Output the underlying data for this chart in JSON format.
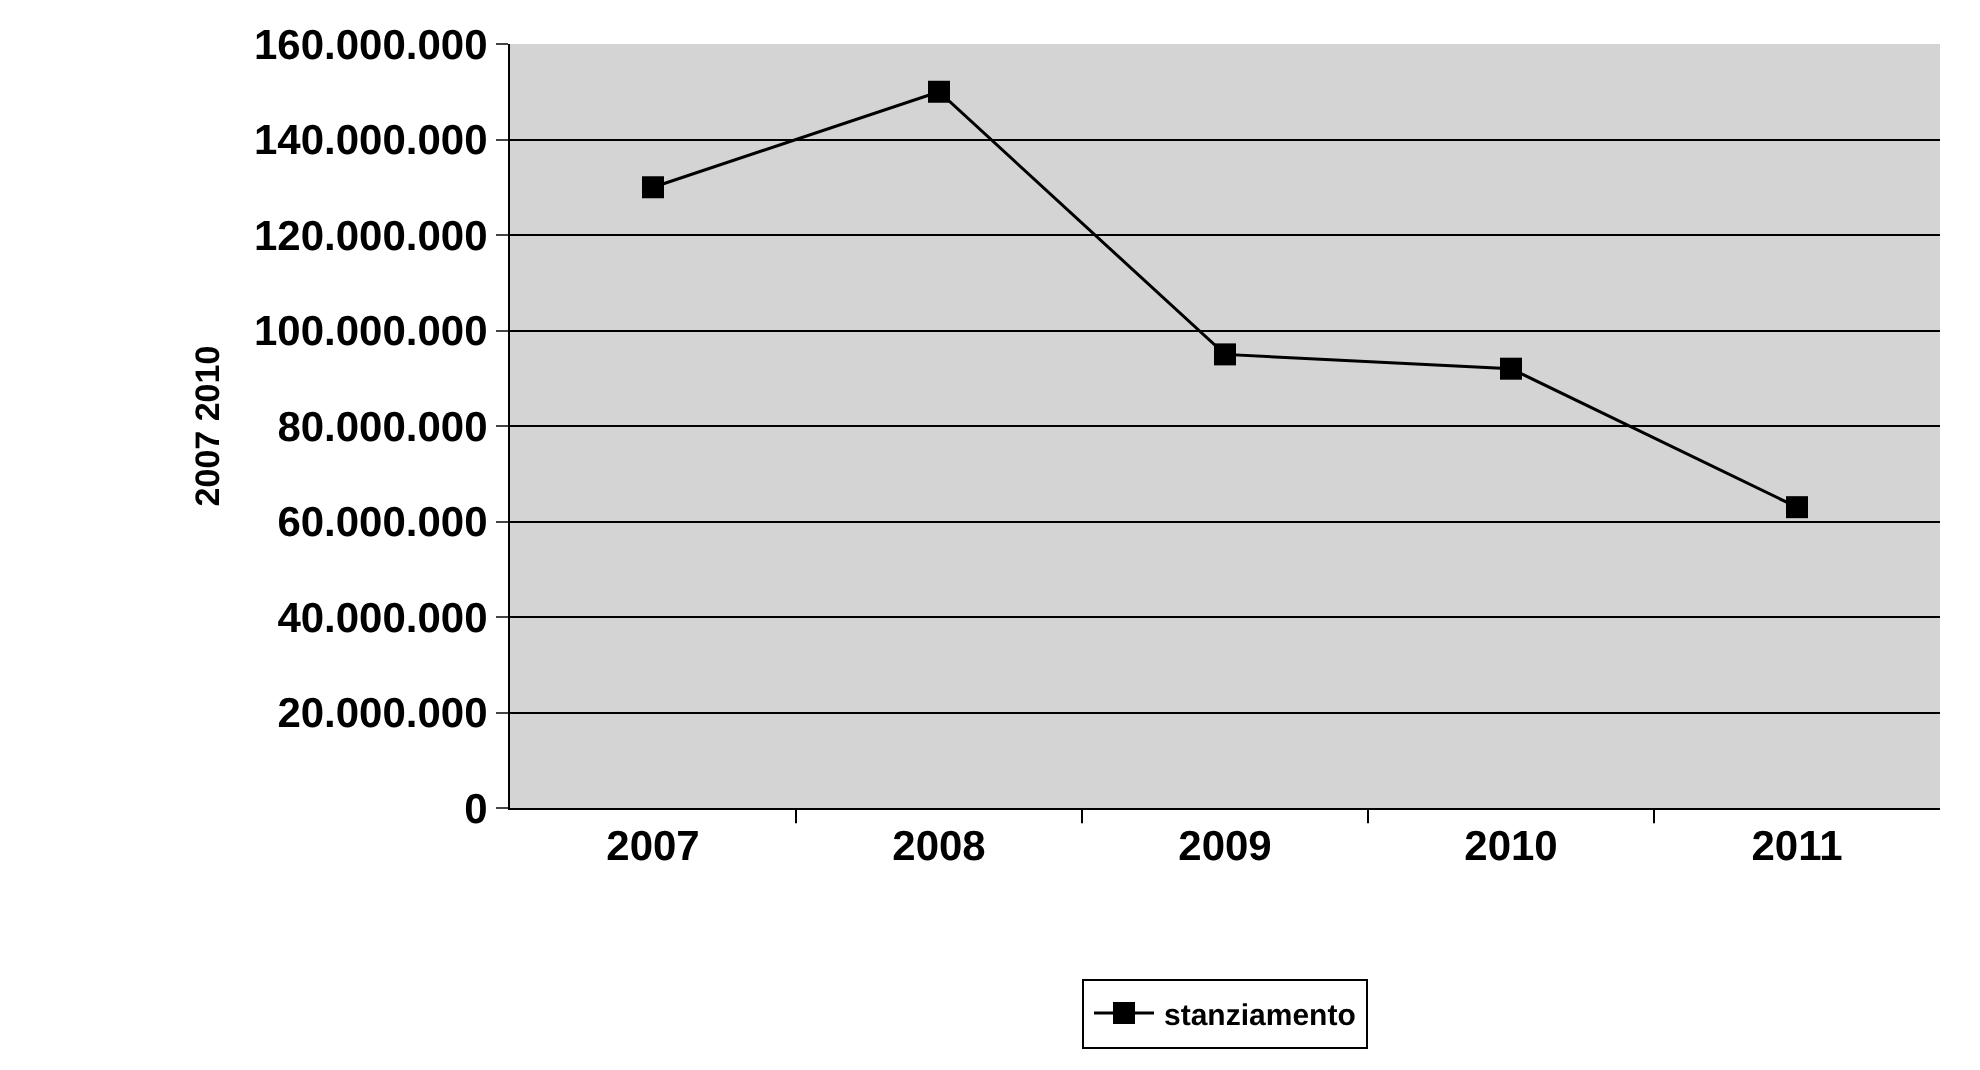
{
  "chart_data": {
    "type": "line",
    "ylabel": "2007 2010",
    "categories": [
      "2007",
      "2008",
      "2009",
      "2010",
      "2011"
    ],
    "series": [
      {
        "name": "stanziamento",
        "color": "#000000",
        "values": [
          130000000,
          150000000,
          95000000,
          92000000,
          63000000
        ]
      }
    ],
    "ylim": [
      0,
      160000000
    ],
    "yticks": [
      {
        "value": 0,
        "label": "0"
      },
      {
        "value": 20000000,
        "label": "20.000.000"
      },
      {
        "value": 40000000,
        "label": "40.000.000"
      },
      {
        "value": 60000000,
        "label": "60.000.000"
      },
      {
        "value": 80000000,
        "label": "80.000.000"
      },
      {
        "value": 100000000,
        "label": "100.000.000"
      },
      {
        "value": 120000000,
        "label": "120.000.000"
      },
      {
        "value": 140000000,
        "label": "140.000.000"
      },
      {
        "value": 160000000,
        "label": "160.000.000"
      }
    ],
    "grid": "y",
    "legend": "bottom",
    "marker": "square",
    "line_style": "solid"
  }
}
